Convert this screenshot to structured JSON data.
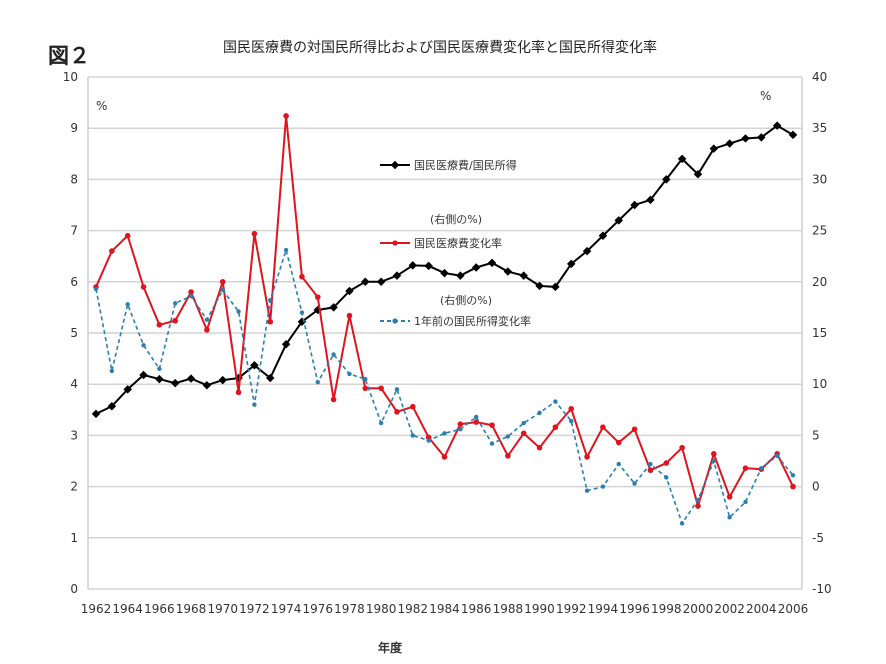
{
  "figure_label": "図２",
  "chart_data": {
    "type": "line",
    "title": "国民医療費の対国民所得比および国民医療費変化率と国民所得変化率",
    "xlabel": "年度",
    "ylabel_left": "%",
    "ylabel_right": "%",
    "ylim_left": [
      0,
      10
    ],
    "ylim_right": [
      -10,
      40
    ],
    "yticks_left": [
      0,
      1,
      2,
      3,
      4,
      5,
      6,
      7,
      8,
      9,
      10
    ],
    "yticks_right": [
      -10,
      -5,
      0,
      5,
      10,
      15,
      20,
      25,
      30,
      35,
      40
    ],
    "xticks": [
      1962,
      1964,
      1966,
      1968,
      1970,
      1972,
      1974,
      1976,
      1978,
      1980,
      1982,
      1984,
      1986,
      1988,
      1990,
      1992,
      1994,
      1996,
      1998,
      2000,
      2002,
      2004,
      2006
    ],
    "grid": true,
    "legend_position": "center",
    "x": [
      1962,
      1963,
      1964,
      1965,
      1966,
      1967,
      1968,
      1969,
      1970,
      1971,
      1972,
      1973,
      1974,
      1975,
      1976,
      1977,
      1978,
      1979,
      1980,
      1981,
      1982,
      1983,
      1984,
      1985,
      1986,
      1987,
      1988,
      1989,
      1990,
      1991,
      1992,
      1993,
      1994,
      1995,
      1996,
      1997,
      1998,
      1999,
      2000,
      2001,
      2002,
      2003,
      2004,
      2005,
      2006
    ],
    "series": [
      {
        "name": "国民医療費/国民所得",
        "note": "",
        "axis": "left",
        "color": "#000000",
        "dashed": false,
        "values": [
          3.42,
          3.57,
          3.9,
          4.18,
          4.1,
          4.02,
          4.11,
          3.98,
          4.08,
          4.12,
          4.37,
          4.12,
          4.78,
          5.22,
          5.45,
          5.5,
          5.82,
          6.0,
          6.0,
          6.12,
          6.32,
          6.31,
          6.17,
          6.12,
          6.28,
          6.37,
          6.2,
          6.12,
          5.92,
          5.9,
          6.35,
          6.6,
          6.9,
          7.2,
          7.5,
          7.6,
          8.0,
          8.4,
          8.1,
          8.6,
          8.7,
          8.8,
          8.82,
          9.05,
          8.87
        ]
      },
      {
        "name": "国民医療費変化率",
        "note": "(右側の%)",
        "axis": "right",
        "color": "#e0141e",
        "dashed": false,
        "values": [
          19.5,
          23,
          24.5,
          19.5,
          15.8,
          16.2,
          19,
          15.3,
          20,
          9.2,
          24.7,
          16.1,
          36.2,
          20.5,
          18.5,
          8.5,
          16.7,
          9.6,
          9.6,
          7.3,
          7.8,
          4.8,
          2.9,
          6.1,
          6.3,
          6.0,
          3.0,
          5.2,
          3.8,
          5.8,
          7.6,
          2.9,
          5.8,
          4.3,
          5.6,
          1.6,
          2.3,
          3.8,
          -1.9,
          3.2,
          -1.0,
          1.8,
          1.7,
          3.2,
          0.0
        ]
      },
      {
        "name": "1年前の国民所得変化率",
        "note": "(右側の%)",
        "axis": "right",
        "color": "#2a7fb0",
        "dashed": true,
        "values": [
          19.3,
          11.3,
          17.8,
          13.8,
          11.5,
          17.9,
          18.6,
          16.3,
          19.2,
          17.1,
          8.0,
          18.2,
          23.1,
          17.0,
          10.2,
          12.9,
          11.0,
          10.5,
          6.2,
          9.5,
          5.0,
          4.5,
          5.2,
          5.6,
          6.8,
          4.2,
          4.9,
          6.2,
          7.2,
          8.3,
          6.4,
          -0.4,
          0.0,
          2.2,
          0.3,
          2.2,
          0.9,
          -3.6,
          -1.3,
          2.5,
          -3.0,
          -1.5,
          1.8,
          3.0,
          1.1
        ]
      }
    ]
  }
}
